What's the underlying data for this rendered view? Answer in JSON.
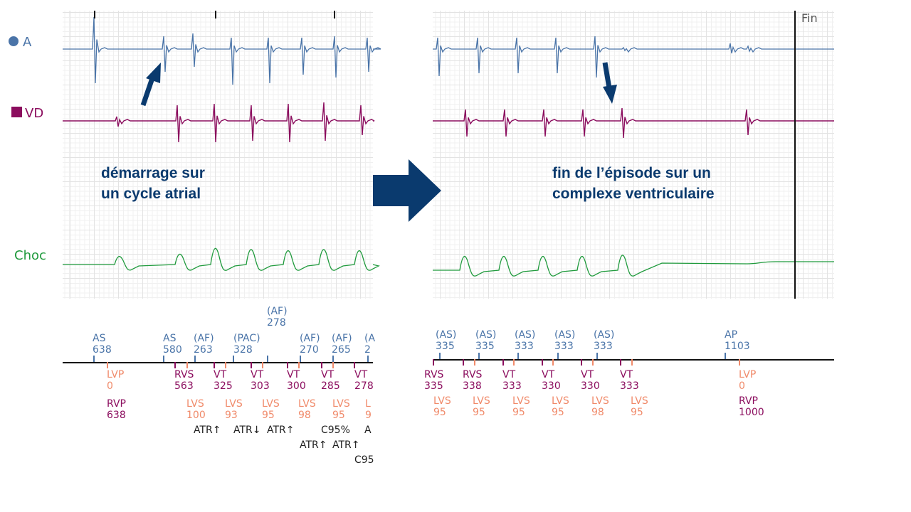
{
  "channels": {
    "a": "A",
    "vd": "VD",
    "choc": "Choc"
  },
  "fin_label": "Fin",
  "captions": {
    "left": [
      "démarrage sur",
      "un cycle atrial"
    ],
    "right": [
      "fin de l’épisode sur un",
      "complexe ventriculaire"
    ]
  },
  "colors": {
    "atrial": "#4a74a8",
    "ventricular": "#8b0d5e",
    "lv": "#f08a6a",
    "shock": "#1f9a3c",
    "arrow": "#0a3a6e",
    "marker_text": "#222222"
  },
  "markers_left": [
    [
      "AS",
      "638"
    ],
    [
      "AS",
      "580"
    ],
    [
      "(AF)",
      "263"
    ],
    [
      "(PAC)",
      "328"
    ],
    [
      "(AF)",
      "278"
    ],
    [
      "(AF)",
      "270"
    ],
    [
      "(AF)",
      "265"
    ],
    [
      "(A",
      "2"
    ],
    [
      "RVS",
      "563"
    ],
    [
      "VT",
      "325"
    ],
    [
      "VT",
      "303"
    ],
    [
      "VT",
      "300"
    ],
    [
      "VT",
      "285"
    ],
    [
      "VT",
      "278"
    ],
    [
      "LVP",
      "0"
    ],
    [
      "RVP",
      "638"
    ],
    [
      "LVS",
      "100"
    ],
    [
      "LVS",
      "93"
    ],
    [
      "LVS",
      "95"
    ],
    [
      "LVS",
      "98"
    ],
    [
      "LVS",
      "95"
    ],
    [
      "L",
      "9"
    ],
    [
      "ATR↑"
    ],
    [
      "ATR↓"
    ],
    [
      "ATR↑"
    ],
    [
      "C95%"
    ],
    [
      "A"
    ],
    [
      "ATR↑"
    ],
    [
      "ATR↑"
    ],
    [
      "C95"
    ]
  ],
  "markers_right": [
    [
      "(AS)",
      "335"
    ],
    [
      "(AS)",
      "335"
    ],
    [
      "(AS)",
      "333"
    ],
    [
      "(AS)",
      "333"
    ],
    [
      "(AS)",
      "333"
    ],
    [
      "AP",
      "1103"
    ],
    [
      "RVS",
      "335"
    ],
    [
      "RVS",
      "338"
    ],
    [
      "VT",
      "333"
    ],
    [
      "VT",
      "330"
    ],
    [
      "VT",
      "330"
    ],
    [
      "VT",
      "333"
    ],
    [
      "LVP",
      "0"
    ],
    [
      "LVS",
      "95"
    ],
    [
      "LVS",
      "95"
    ],
    [
      "LVS",
      "95"
    ],
    [
      "LVS",
      "95"
    ],
    [
      "LVS",
      "98"
    ],
    [
      "LVS",
      "95"
    ],
    [
      "RVP",
      "1000"
    ]
  ]
}
